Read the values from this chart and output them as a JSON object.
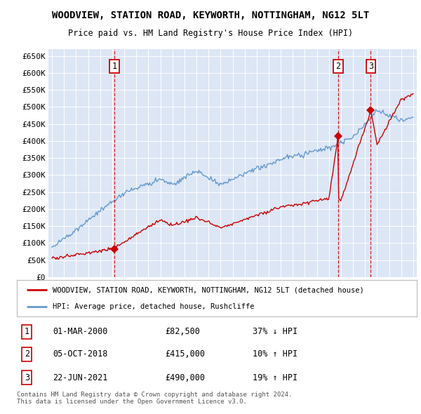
{
  "title": "WOODVIEW, STATION ROAD, KEYWORTH, NOTTINGHAM, NG12 5LT",
  "subtitle": "Price paid vs. HM Land Registry's House Price Index (HPI)",
  "background_color": "#f0f4fa",
  "plot_bg_color": "#dce6f5",
  "ylim": [
    0,
    670000
  ],
  "yticks": [
    0,
    50000,
    100000,
    150000,
    200000,
    250000,
    300000,
    350000,
    400000,
    450000,
    500000,
    550000,
    600000,
    650000
  ],
  "xlim_start": 1994.7,
  "xlim_end": 2025.3,
  "transactions": [
    {
      "label": "1",
      "year": 2000.17,
      "price": 82500
    },
    {
      "label": "2",
      "year": 2018.76,
      "price": 415000
    },
    {
      "label": "3",
      "year": 2021.48,
      "price": 490000
    }
  ],
  "transaction_info": [
    {
      "num": "1",
      "date": "01-MAR-2000",
      "price": "£82,500",
      "hpi": "37% ↓ HPI"
    },
    {
      "num": "2",
      "date": "05-OCT-2018",
      "price": "£415,000",
      "hpi": "10% ↑ HPI"
    },
    {
      "num": "3",
      "date": "22-JUN-2021",
      "price": "£490,000",
      "hpi": "19% ↑ HPI"
    }
  ],
  "legend_label_red": "WOODVIEW, STATION ROAD, KEYWORTH, NOTTINGHAM, NG12 5LT (detached house)",
  "legend_label_blue": "HPI: Average price, detached house, Rushcliffe",
  "footer": "Contains HM Land Registry data © Crown copyright and database right 2024.\nThis data is licensed under the Open Government Licence v3.0.",
  "red_color": "#cc0000",
  "blue_color": "#6699cc",
  "vline_color": "#dd0000"
}
